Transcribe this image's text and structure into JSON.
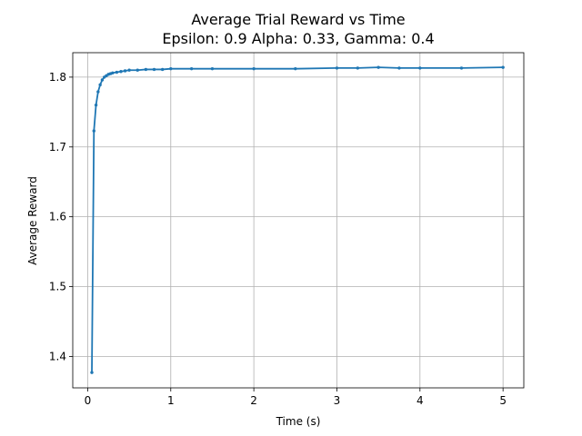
{
  "chart_data": {
    "type": "line",
    "title": "Average Trial Reward vs Time",
    "subtitle": "Epsilon: 0.9 Alpha: 0.33, Gamma: 0.4",
    "xlabel": "Time (s)",
    "ylabel": "Average Reward",
    "xlim": [
      -0.18,
      5.25
    ],
    "ylim": [
      1.355,
      1.835
    ],
    "x_ticks": [
      0,
      1,
      2,
      3,
      4,
      5
    ],
    "x_tick_labels": [
      "0",
      "1",
      "2",
      "3",
      "4",
      "5"
    ],
    "y_ticks": [
      1.4,
      1.5,
      1.6,
      1.7,
      1.8
    ],
    "y_tick_labels": [
      "1.4",
      "1.5",
      "1.6",
      "1.7",
      "1.8"
    ],
    "grid": true,
    "legend": "none",
    "color": "#1f77b4",
    "series": [
      {
        "marker": "dot",
        "x": [
          0.05,
          0.075,
          0.1,
          0.125,
          0.15,
          0.175,
          0.2,
          0.225,
          0.25,
          0.275,
          0.3,
          0.35,
          0.4,
          0.45,
          0.5,
          0.6,
          0.7,
          0.8,
          0.9,
          1.0,
          1.25,
          1.5,
          2.0,
          2.5,
          3.0,
          3.25,
          3.5,
          3.75,
          4.0,
          4.5,
          5.0
        ],
        "y": [
          1.377,
          1.723,
          1.76,
          1.779,
          1.789,
          1.796,
          1.8,
          1.802,
          1.804,
          1.805,
          1.806,
          1.807,
          1.808,
          1.809,
          1.81,
          1.81,
          1.811,
          1.811,
          1.811,
          1.812,
          1.812,
          1.812,
          1.812,
          1.812,
          1.813,
          1.813,
          1.814,
          1.813,
          1.813,
          1.813,
          1.814
        ]
      }
    ]
  }
}
